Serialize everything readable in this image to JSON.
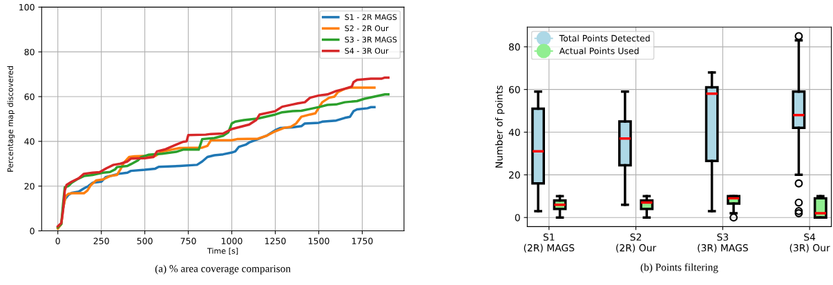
{
  "chart_data": [
    {
      "type": "line",
      "title": "(a) % area coverage comparison",
      "xlabel": "Time [s]",
      "ylabel": "Percentage map discovered",
      "xlim": [
        -93,
        1990
      ],
      "ylim": [
        0,
        100
      ],
      "xticks": [
        0,
        250,
        500,
        750,
        1000,
        1250,
        1500,
        1750
      ],
      "yticks": [
        0,
        20,
        40,
        60,
        80,
        100
      ],
      "grid": true,
      "legend": "top right",
      "line_style": "solid",
      "series": [
        {
          "name": "S1 - 2R MAGS",
          "color": "#1f77b4",
          "x": [
            30,
            40,
            60,
            80,
            120,
            150,
            175,
            200,
            250,
            275,
            350,
            400,
            420,
            500,
            560,
            580,
            700,
            800,
            830,
            860,
            900,
            950,
            1000,
            1020,
            1040,
            1080,
            1100,
            1150,
            1200,
            1250,
            1280,
            1350,
            1400,
            1420,
            1500,
            1520,
            1600,
            1650,
            1680,
            1700,
            1720,
            1780,
            1800,
            1820
          ],
          "values": [
            10,
            14,
            16,
            17,
            17.5,
            19,
            20,
            21.5,
            22,
            24,
            25.5,
            26,
            26.8,
            27.3,
            27.8,
            28.6,
            29,
            29.5,
            31,
            33,
            33.8,
            34.2,
            35,
            35.5,
            37.5,
            38.5,
            39.5,
            41,
            42.5,
            45,
            46,
            46.3,
            46.8,
            48,
            48.3,
            48.8,
            49.3,
            50.5,
            51,
            53.5,
            54.3,
            54.8,
            55.3,
            55.3
          ]
        },
        {
          "name": "S2 - 2R Our",
          "color": "#ff7f0e",
          "x": [
            0,
            20,
            30,
            45,
            60,
            80,
            150,
            170,
            190,
            220,
            260,
            300,
            340,
            360,
            380,
            410,
            440,
            500,
            560,
            600,
            700,
            830,
            860,
            880,
            1000,
            1030,
            1150,
            1200,
            1250,
            1300,
            1340,
            1370,
            1400,
            1450,
            1480,
            1500,
            1520,
            1560,
            1590,
            1610,
            1650,
            1680,
            1820
          ],
          "values": [
            1,
            3,
            10,
            15.5,
            16.5,
            16.8,
            16.8,
            18,
            20.5,
            22.5,
            23,
            24.5,
            25,
            27.5,
            30.5,
            33,
            33.3,
            33.5,
            33.5,
            35.5,
            37,
            37.2,
            38,
            40.5,
            40.5,
            41,
            41.2,
            42.5,
            44.5,
            46,
            46.5,
            48,
            51,
            52,
            52.5,
            55,
            57.5,
            59.5,
            60,
            62,
            63.5,
            64,
            64
          ]
        },
        {
          "name": "S3 - 3R MAGS",
          "color": "#2ca02c",
          "x": [
            0,
            20,
            30,
            40,
            60,
            80,
            110,
            150,
            200,
            230,
            260,
            300,
            330,
            340,
            400,
            420,
            460,
            480,
            520,
            600,
            680,
            720,
            810,
            830,
            900,
            950,
            980,
            1000,
            1020,
            1070,
            1150,
            1250,
            1290,
            1350,
            1400,
            1450,
            1510,
            1550,
            1600,
            1650,
            1720,
            1760,
            1820,
            1880,
            1900
          ],
          "values": [
            1.5,
            3,
            12,
            19.5,
            20,
            21.5,
            23,
            24.5,
            25,
            25.5,
            26,
            26.3,
            27.5,
            28.5,
            29,
            29.8,
            31.5,
            33,
            34,
            34.5,
            35.3,
            36.3,
            36.3,
            41,
            41.5,
            42.5,
            44,
            48,
            48.8,
            49.5,
            50.2,
            52,
            53,
            53.5,
            53.7,
            54.5,
            55.5,
            56.3,
            56.5,
            57.5,
            58,
            59,
            60,
            61,
            61
          ]
        },
        {
          "name": "S4 - 3R Our",
          "color": "#d62728",
          "x": [
            0,
            20,
            30,
            40,
            50,
            80,
            120,
            150,
            200,
            240,
            280,
            320,
            360,
            400,
            420,
            500,
            550,
            570,
            620,
            680,
            720,
            740,
            750,
            850,
            880,
            950,
            1000,
            1050,
            1100,
            1140,
            1160,
            1250,
            1290,
            1350,
            1380,
            1420,
            1450,
            1500,
            1550,
            1600,
            1650,
            1690,
            1700,
            1720,
            1800,
            1860,
            1880,
            1900
          ],
          "values": [
            2,
            3.5,
            9,
            18,
            20.5,
            22,
            23.5,
            25.5,
            26,
            26.2,
            28,
            29.5,
            30,
            31,
            32.3,
            32.5,
            33,
            35.5,
            36.5,
            38.5,
            39.8,
            40,
            42.8,
            43,
            43.3,
            43.5,
            45.5,
            46.5,
            47.5,
            49.5,
            52,
            53.5,
            55.5,
            56.5,
            57,
            57.5,
            59.5,
            60.5,
            61,
            62.5,
            63.5,
            64.5,
            66.5,
            67.5,
            68,
            68,
            68.5,
            68.5
          ]
        }
      ]
    },
    {
      "type": "box",
      "title": "(b) Points filtering",
      "ylabel": "Number of points",
      "categories": [
        "S1\n(2R) MAGS",
        "S2\n(2R) Our",
        "S3\n(3R) MAGS",
        "S4\n(3R) Our"
      ],
      "ylim": [
        -4.25,
        89.25
      ],
      "yticks": [
        0,
        20,
        40,
        60,
        80
      ],
      "grid": true,
      "legend": "top left",
      "marker": "circle",
      "series": [
        {
          "name": "Total Points Detected",
          "color": "#add8e6",
          "boxes": [
            {
              "low": 3,
              "q1": 16,
              "median": 31,
              "q3": 51,
              "high": 59
            },
            {
              "low": 6,
              "q1": 24.5,
              "median": 37,
              "q3": 45,
              "high": 59
            },
            {
              "low": 3,
              "q1": 26.5,
              "median": 58,
              "q3": 61,
              "high": 68
            },
            {
              "low": 20,
              "q1": 42,
              "median": 48,
              "q3": 59,
              "high": 83,
              "outliers": [
                85,
                16,
                7,
                3,
                2
              ]
            }
          ]
        },
        {
          "name": "Actual Points Used",
          "color": "#90ee90",
          "boxes": [
            {
              "low": 0,
              "q1": 4,
              "median": 6,
              "q3": 8,
              "high": 10
            },
            {
              "low": 0,
              "q1": 4,
              "median": 7,
              "q3": 8,
              "high": 10
            },
            {
              "low": 2,
              "q1": 6.5,
              "median": 9,
              "q3": 10,
              "high": 10,
              "outliers": [
                0
              ]
            },
            {
              "low": 0,
              "q1": 0,
              "median": 2,
              "q3": 9,
              "high": 10
            }
          ]
        }
      ]
    }
  ]
}
